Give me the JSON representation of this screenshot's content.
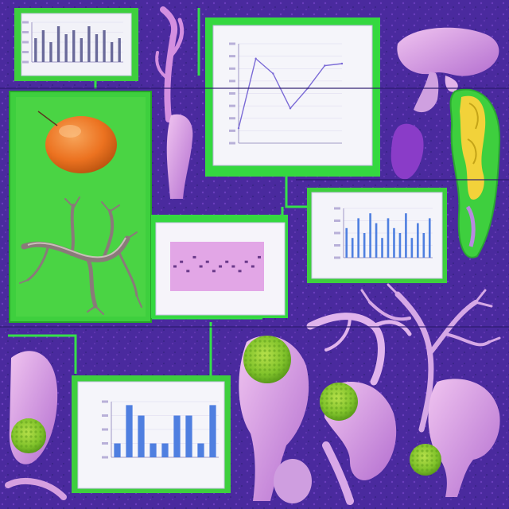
{
  "palette": {
    "background": "#4a2a9e",
    "panel_green": "#3ecf3e",
    "bright_green": "#2ee84a",
    "card_white": "#f2f2f8",
    "pink_organ": "#d8a0e0",
    "orange_organ": "#f07a2a",
    "yellow_organ": "#f2d23a",
    "bar_blue": "#4f7fe0",
    "line_purple": "#7a6ad6"
  },
  "icons": [
    "orange-ovoid-organ",
    "branching-root-structure",
    "pink-branching-coral",
    "pink-bone-forms",
    "green-textured-spheres",
    "yellow-segmented-organ",
    "pink-mushroom-organ"
  ],
  "chart_data": [
    {
      "type": "bar",
      "values": [
        6,
        8,
        5,
        9,
        7,
        8,
        6,
        9,
        7,
        8,
        5,
        6
      ]
    },
    {
      "type": "line",
      "values": [
        1.5,
        8.5,
        7.0,
        3.5,
        5.5,
        7.8,
        8.0
      ]
    },
    {
      "type": "bar",
      "values": [
        6,
        4,
        8,
        5,
        9,
        7,
        4,
        8,
        6,
        5,
        9,
        4,
        7,
        5,
        8
      ]
    },
    {
      "type": "scatter",
      "values": [
        5,
        6,
        4,
        7,
        5,
        6,
        4,
        5,
        6,
        5,
        4,
        6,
        5,
        7
      ]
    },
    {
      "type": "bar",
      "values": [
        2,
        7.5,
        6,
        2,
        2,
        6,
        6,
        2,
        7.5
      ]
    }
  ]
}
